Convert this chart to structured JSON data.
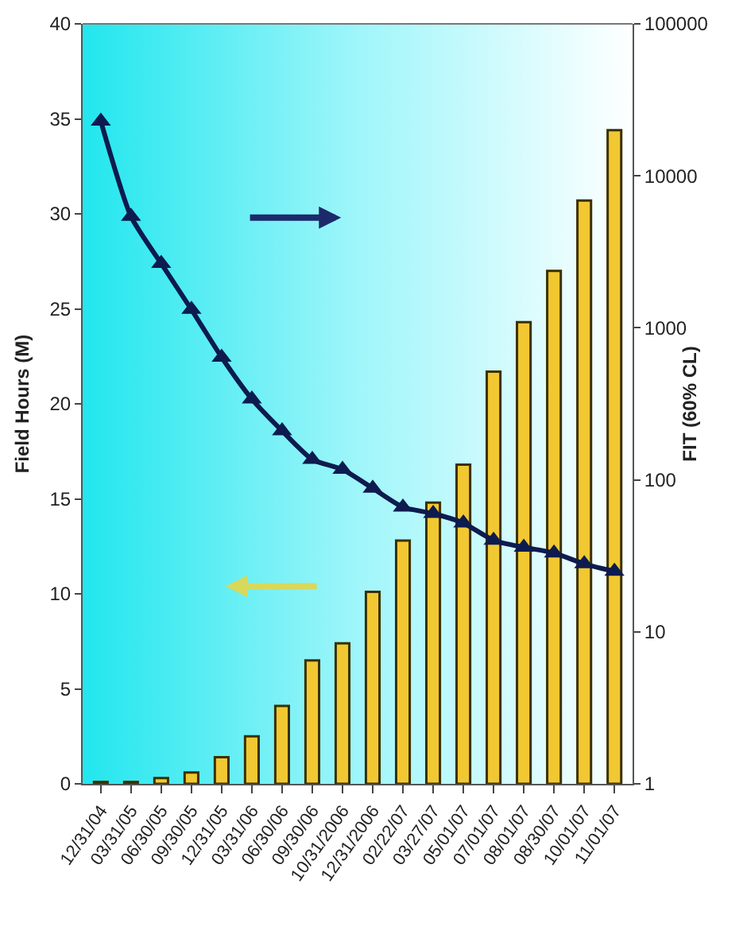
{
  "chart_data": {
    "type": "bar",
    "ylabel": "Field Hours (M)",
    "y2label": "FIT (60% CL)",
    "categories": [
      "12/31/04",
      "03/31/05",
      "06/30/05",
      "09/30/05",
      "12/31/05",
      "03/31/06",
      "06/30/06",
      "09/30/06",
      "10/31/2006",
      "12/31/2006",
      "02/22/07",
      "03/27/07",
      "05/01/07",
      "07/01/07",
      "08/01/07",
      "08/30/07",
      "10/01/07",
      "11/01/07"
    ],
    "series": [
      {
        "color": "#f2c832",
        "values": [
          0.1,
          0.1,
          0.3,
          0.6,
          1.4,
          2.5,
          4.1,
          6.5,
          7.4,
          10.1,
          12.8,
          14.8,
          16.8,
          21.7,
          24.3,
          27,
          30.7,
          34.4
        ]
      },
      {
        "type": "line",
        "axis": "y2",
        "color": "#0d1b4f",
        "marker": "triangle",
        "line_style": "solid",
        "values": [
          22900,
          5400,
          2650,
          1320,
          640,
          340,
          210,
          136,
          117,
          88,
          66,
          60,
          52,
          40,
          36,
          33,
          28,
          25
        ]
      }
    ],
    "ylim": [
      0,
      40
    ],
    "yticks": [
      0,
      5,
      10,
      15,
      20,
      25,
      30,
      35,
      40
    ],
    "y2lim": [
      1,
      100000
    ],
    "y2ticks": [
      1,
      10,
      100,
      1000,
      10000,
      100000
    ],
    "log": "y2",
    "grid": false
  }
}
